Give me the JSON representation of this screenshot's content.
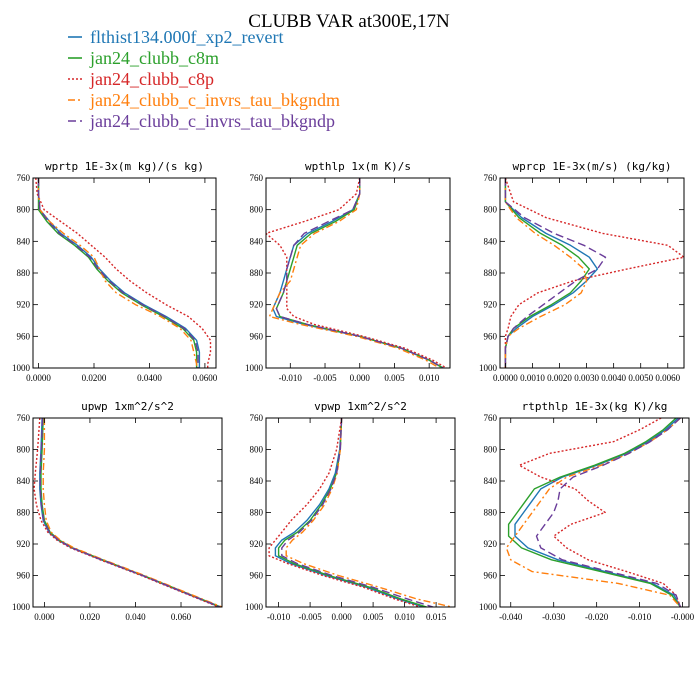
{
  "figure": {
    "title": "CLUBB VAR at300E,17N"
  },
  "legend": [
    {
      "name": "flthist134.000f_xp2_revert",
      "color": "#1f77b4",
      "dash": ""
    },
    {
      "name": "jan24_clubb_c8m",
      "color": "#2ca02c",
      "dash": ""
    },
    {
      "name": "jan24_clubb_c8p",
      "color": "#d62728",
      "dash": "2,2"
    },
    {
      "name": "jan24_clubb_c_invrs_tau_bkgndm",
      "color": "#ff7f0e",
      "dash": "7,3,2,3"
    },
    {
      "name": "jan24_clubb_c_invrs_tau_bkgndp",
      "color": "#6a3d9a",
      "dash": "8,4"
    }
  ],
  "chart_data": [
    {
      "type": "line",
      "title": "wprtp  1E-3x(m kg)/(s kg)",
      "xlim": [
        -0.002,
        0.064
      ],
      "ylim": [
        760,
        1000
      ],
      "y_inverted": true,
      "xticks": [
        0.0,
        0.02,
        0.04,
        0.06
      ],
      "xtick_labels": [
        "0.0000",
        "0.0200",
        "0.0400",
        "0.0600"
      ],
      "yticks": [
        760,
        800,
        840,
        880,
        920,
        960,
        1000
      ],
      "y": [
        760,
        780,
        800,
        815,
        830,
        845,
        860,
        875,
        890,
        905,
        920,
        935,
        950,
        965,
        980,
        995,
        1000
      ],
      "series": [
        {
          "name": "flthist134.000f_xp2_revert",
          "x": [
            0.0,
            0.0,
            0.0005,
            0.004,
            0.008,
            0.014,
            0.019,
            0.022,
            0.026,
            0.031,
            0.038,
            0.046,
            0.053,
            0.057,
            0.058,
            0.058,
            0.058
          ]
        },
        {
          "name": "jan24_clubb_c8m",
          "x": [
            0.0,
            0.0,
            0.0,
            0.003,
            0.007,
            0.013,
            0.018,
            0.021,
            0.025,
            0.03,
            0.037,
            0.045,
            0.052,
            0.056,
            0.057,
            0.057,
            0.057
          ]
        },
        {
          "name": "jan24_clubb_c8p",
          "x": [
            -0.001,
            -0.0005,
            0.002,
            0.008,
            0.014,
            0.019,
            0.024,
            0.028,
            0.033,
            0.039,
            0.046,
            0.054,
            0.059,
            0.062,
            0.062,
            0.061,
            0.061
          ]
        },
        {
          "name": "jan24_clubb_c_invrs_tau_bkgndm",
          "x": [
            0.0,
            0.0,
            0.0005,
            0.004,
            0.009,
            0.015,
            0.02,
            0.022,
            0.024,
            0.028,
            0.035,
            0.044,
            0.051,
            0.055,
            0.056,
            0.057,
            0.057
          ]
        },
        {
          "name": "jan24_clubb_c_invrs_tau_bkgndp",
          "x": [
            0.0,
            0.0,
            0.0005,
            0.0035,
            0.0075,
            0.0135,
            0.0185,
            0.0215,
            0.0255,
            0.0305,
            0.0375,
            0.0455,
            0.0525,
            0.0565,
            0.0575,
            0.0575,
            0.0575
          ]
        }
      ]
    },
    {
      "type": "line",
      "title": "wpthlp  1x(m K)/s",
      "xlim": [
        -0.0135,
        0.013
      ],
      "ylim": [
        760,
        1000
      ],
      "y_inverted": true,
      "xticks": [
        -0.01,
        -0.005,
        0.0,
        0.005,
        0.01
      ],
      "xtick_labels": [
        "-0.010",
        "-0.005",
        "0.000",
        "0.005",
        "0.010"
      ],
      "yticks": [
        760,
        800,
        840,
        880,
        920,
        960,
        1000
      ],
      "y": [
        760,
        780,
        800,
        815,
        830,
        845,
        860,
        875,
        890,
        905,
        915,
        925,
        935,
        945,
        960,
        975,
        990,
        1000
      ],
      "series": [
        {
          "name": "flthist134.000f_xp2_revert",
          "x": [
            0.0,
            0.0,
            -0.001,
            -0.004,
            -0.0075,
            -0.0095,
            -0.01,
            -0.0105,
            -0.011,
            -0.0115,
            -0.012,
            -0.0125,
            -0.012,
            -0.008,
            0.0,
            0.006,
            0.01,
            0.012
          ]
        },
        {
          "name": "jan24_clubb_c8m",
          "x": [
            0.0,
            0.0,
            -0.0008,
            -0.0035,
            -0.007,
            -0.009,
            -0.0095,
            -0.01,
            -0.0105,
            -0.011,
            -0.0115,
            -0.012,
            -0.0115,
            -0.0075,
            0.0,
            0.006,
            0.01,
            0.012
          ]
        },
        {
          "name": "jan24_clubb_c8p",
          "x": [
            0.0,
            -0.0005,
            -0.003,
            -0.008,
            -0.0135,
            -0.0115,
            -0.0105,
            -0.0105,
            -0.0105,
            -0.0105,
            -0.0105,
            -0.0105,
            -0.0095,
            -0.0065,
            0.0005,
            0.0065,
            0.0105,
            0.0125
          ]
        },
        {
          "name": "jan24_clubb_c_invrs_tau_bkgndm",
          "x": [
            0.0,
            0.0,
            -0.0005,
            -0.003,
            -0.0065,
            -0.0085,
            -0.009,
            -0.0095,
            -0.01,
            -0.0115,
            -0.012,
            -0.0125,
            -0.013,
            -0.0085,
            -0.0005,
            0.0055,
            0.0095,
            0.0115
          ]
        },
        {
          "name": "jan24_clubb_c_invrs_tau_bkgndp",
          "x": [
            0.0,
            0.0,
            -0.001,
            -0.0045,
            -0.008,
            -0.0095,
            -0.01,
            -0.0105,
            -0.0105,
            -0.011,
            -0.0115,
            -0.012,
            -0.0115,
            -0.0075,
            0.0,
            0.006,
            0.01,
            0.012
          ]
        }
      ]
    },
    {
      "type": "line",
      "title": "wprcp  1E-3x(m/s) (kg/kg)",
      "xlim": [
        -0.0002,
        0.0066
      ],
      "ylim": [
        760,
        1000
      ],
      "y_inverted": true,
      "xticks": [
        0.0,
        0.001,
        0.002,
        0.003,
        0.004,
        0.005,
        0.006
      ],
      "xtick_labels": [
        "0.0000",
        "0.0010",
        "0.0020",
        "0.0030",
        "0.0040",
        "0.0050",
        "0.0060"
      ],
      "yticks": [
        760,
        800,
        840,
        880,
        920,
        960,
        1000
      ],
      "y": [
        760,
        790,
        810,
        830,
        845,
        860,
        875,
        890,
        905,
        920,
        935,
        950,
        960,
        975,
        1000
      ],
      "series": [
        {
          "name": "flthist134.000f_xp2_revert",
          "x": [
            0.0,
            0.0,
            0.0006,
            0.0015,
            0.0024,
            0.0031,
            0.0034,
            0.003,
            0.0025,
            0.0018,
            0.001,
            0.0004,
            0.0001,
            0.0,
            0.0
          ]
        },
        {
          "name": "jan24_clubb_c8m",
          "x": [
            0.0,
            0.0,
            0.0005,
            0.0013,
            0.0021,
            0.0027,
            0.0031,
            0.0028,
            0.0024,
            0.0017,
            0.0009,
            0.0003,
            0.0001,
            0.0,
            0.0
          ]
        },
        {
          "name": "jan24_clubb_c8p",
          "x": [
            0.0,
            0.0003,
            0.0015,
            0.0036,
            0.006,
            0.0066,
            0.0045,
            0.0025,
            0.0012,
            0.0005,
            0.0002,
            0.0001,
            0.0,
            0.0,
            0.0
          ]
        },
        {
          "name": "jan24_clubb_c_invrs_tau_bkgndm",
          "x": [
            0.0,
            0.0,
            0.0004,
            0.0011,
            0.0018,
            0.0024,
            0.0029,
            0.003,
            0.0028,
            0.0022,
            0.0013,
            0.0005,
            0.0001,
            0.0,
            0.0
          ]
        },
        {
          "name": "jan24_clubb_c_invrs_tau_bkgndp",
          "x": [
            0.0,
            0.0,
            0.0007,
            0.0018,
            0.0029,
            0.0037,
            0.0034,
            0.0026,
            0.002,
            0.0014,
            0.0008,
            0.0003,
            0.0001,
            0.0,
            0.0
          ]
        }
      ]
    },
    {
      "type": "line",
      "title": "upwp  1xm^2/s^2",
      "xlim": [
        -0.005,
        0.078
      ],
      "ylim": [
        760,
        1000
      ],
      "y_inverted": true,
      "xticks": [
        0.0,
        0.02,
        0.04,
        0.06
      ],
      "xtick_labels": [
        "0.000",
        "0.020",
        "0.040",
        "0.060"
      ],
      "yticks": [
        760,
        800,
        840,
        880,
        920,
        960,
        1000
      ],
      "y": [
        760,
        800,
        830,
        850,
        870,
        890,
        905,
        915,
        925,
        940,
        960,
        980,
        1000
      ],
      "series": [
        {
          "name": "flthist134.000f_xp2_revert",
          "x": [
            -0.001,
            -0.0015,
            -0.002,
            -0.002,
            -0.0015,
            -0.0005,
            0.002,
            0.006,
            0.012,
            0.025,
            0.043,
            0.06,
            0.077
          ]
        },
        {
          "name": "jan24_clubb_c8m",
          "x": [
            -0.0005,
            -0.001,
            -0.0015,
            -0.0015,
            -0.001,
            0.0,
            0.0025,
            0.0065,
            0.0125,
            0.0255,
            0.0435,
            0.0605,
            0.0775
          ]
        },
        {
          "name": "jan24_clubb_c8p",
          "x": [
            -0.002,
            -0.003,
            -0.004,
            -0.0045,
            -0.0035,
            -0.0015,
            0.0015,
            0.0055,
            0.0115,
            0.0245,
            0.0425,
            0.0595,
            0.0765
          ]
        },
        {
          "name": "jan24_clubb_c_invrs_tau_bkgndm",
          "x": [
            0.0,
            0.0,
            -0.0005,
            -0.0005,
            0.0,
            0.0008,
            0.003,
            0.007,
            0.013,
            0.026,
            0.044,
            0.061,
            0.078
          ]
        },
        {
          "name": "jan24_clubb_c_invrs_tau_bkgndp",
          "x": [
            -0.0008,
            -0.0013,
            -0.0018,
            -0.0018,
            -0.0013,
            -0.0003,
            0.0022,
            0.0062,
            0.0122,
            0.0252,
            0.0432,
            0.0602,
            0.0772
          ]
        }
      ]
    },
    {
      "type": "line",
      "title": "vpwp  1xm^2/s^2",
      "xlim": [
        -0.012,
        0.018
      ],
      "ylim": [
        760,
        1000
      ],
      "y_inverted": true,
      "xticks": [
        -0.01,
        -0.005,
        0.0,
        0.005,
        0.01,
        0.015
      ],
      "xtick_labels": [
        "-0.010",
        "-0.005",
        "0.000",
        "0.005",
        "0.010",
        "0.015"
      ],
      "yticks": [
        760,
        800,
        840,
        880,
        920,
        960,
        1000
      ],
      "y": [
        760,
        800,
        830,
        850,
        870,
        890,
        905,
        915,
        925,
        935,
        945,
        960,
        975,
        990,
        1000
      ],
      "series": [
        {
          "name": "flthist134.000f_xp2_revert",
          "x": [
            0.0,
            -0.0003,
            -0.001,
            -0.002,
            -0.0035,
            -0.0055,
            -0.0075,
            -0.0095,
            -0.0105,
            -0.0105,
            -0.008,
            -0.0025,
            0.004,
            0.009,
            0.013
          ]
        },
        {
          "name": "jan24_clubb_c8m",
          "x": [
            0.0,
            -0.0002,
            -0.0008,
            -0.0018,
            -0.0032,
            -0.005,
            -0.007,
            -0.009,
            -0.01,
            -0.01,
            -0.0075,
            -0.002,
            0.0045,
            0.0095,
            0.0135
          ]
        },
        {
          "name": "jan24_clubb_c8p",
          "x": [
            0.0,
            -0.0008,
            -0.002,
            -0.0035,
            -0.0055,
            -0.008,
            -0.0095,
            -0.0105,
            -0.0115,
            -0.0115,
            -0.0085,
            -0.003,
            0.0035,
            0.0085,
            0.0125
          ]
        },
        {
          "name": "jan24_clubb_c_invrs_tau_bkgndm",
          "x": [
            0.0,
            -0.0002,
            -0.0007,
            -0.0015,
            -0.0027,
            -0.0045,
            -0.0062,
            -0.0078,
            -0.0088,
            -0.0088,
            -0.006,
            -0.0005,
            0.006,
            0.012,
            0.0175
          ]
        },
        {
          "name": "jan24_clubb_c_invrs_tau_bkgndp",
          "x": [
            0.0,
            -0.0002,
            -0.0008,
            -0.0017,
            -0.003,
            -0.0048,
            -0.0067,
            -0.0085,
            -0.0095,
            -0.0095,
            -0.007,
            -0.0015,
            0.005,
            0.0105,
            0.0145
          ]
        }
      ]
    },
    {
      "type": "line",
      "title": "rtpthlp  1E-3x(kg K)/kg",
      "xlim": [
        -0.0425,
        0.0015
      ],
      "ylim": [
        760,
        1000
      ],
      "y_inverted": true,
      "xticks": [
        -0.04,
        -0.03,
        -0.02,
        -0.01,
        0.0
      ],
      "xtick_labels": [
        "-0.040",
        "-0.030",
        "-0.020",
        "-0.010",
        "-0.000"
      ],
      "yticks": [
        760,
        800,
        840,
        880,
        920,
        960,
        1000
      ],
      "y": [
        760,
        775,
        790,
        805,
        820,
        835,
        850,
        865,
        880,
        895,
        910,
        925,
        940,
        955,
        970,
        985,
        1000
      ],
      "series": [
        {
          "name": "flthist134.000f_xp2_revert",
          "x": [
            -0.001,
            -0.004,
            -0.008,
            -0.013,
            -0.02,
            -0.028,
            -0.033,
            -0.035,
            -0.037,
            -0.039,
            -0.039,
            -0.036,
            -0.029,
            -0.018,
            -0.007,
            -0.002,
            -0.0005
          ]
        },
        {
          "name": "jan24_clubb_c8m",
          "x": [
            -0.0015,
            -0.0045,
            -0.0085,
            -0.0135,
            -0.0205,
            -0.0285,
            -0.0345,
            -0.0365,
            -0.0385,
            -0.0405,
            -0.0405,
            -0.0375,
            -0.0305,
            -0.019,
            -0.0075,
            -0.0025,
            -0.0005
          ]
        },
        {
          "name": "jan24_clubb_c8p",
          "x": [
            -0.005,
            -0.01,
            -0.016,
            -0.031,
            -0.038,
            -0.033,
            -0.025,
            -0.022,
            -0.018,
            -0.026,
            -0.03,
            -0.027,
            -0.022,
            -0.013,
            -0.0045,
            -0.0015,
            -0.0005
          ]
        },
        {
          "name": "jan24_clubb_c_invrs_tau_bkgndm",
          "x": [
            -0.0005,
            -0.0035,
            -0.0075,
            -0.0125,
            -0.019,
            -0.027,
            -0.031,
            -0.033,
            -0.035,
            -0.037,
            -0.039,
            -0.041,
            -0.04,
            -0.035,
            -0.015,
            -0.003,
            -0.0005
          ]
        },
        {
          "name": "jan24_clubb_c_invrs_tau_bkgndp",
          "x": [
            -0.0005,
            -0.0035,
            -0.0075,
            -0.0125,
            -0.0185,
            -0.0255,
            -0.0285,
            -0.029,
            -0.03,
            -0.032,
            -0.034,
            -0.033,
            -0.028,
            -0.017,
            -0.006,
            -0.0015,
            -0.0005
          ]
        }
      ]
    }
  ]
}
